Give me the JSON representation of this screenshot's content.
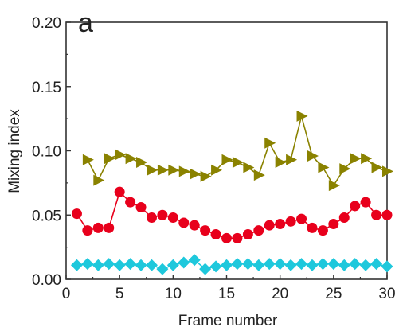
{
  "chart_data": {
    "type": "scatter",
    "panel_label": "a",
    "title": "",
    "xlabel": "Frame number",
    "ylabel": "Mixing index",
    "xlim": [
      0,
      30
    ],
    "ylim": [
      0,
      0.2
    ],
    "x_ticks": [
      0,
      5,
      10,
      15,
      20,
      25,
      30
    ],
    "x_tick_labels": [
      "0",
      "5",
      "10",
      "15",
      "20",
      "25",
      "30"
    ],
    "y_ticks": [
      0,
      0.05,
      0.1,
      0.15,
      0.2
    ],
    "y_tick_labels": [
      "0.00",
      "0.05",
      "0.10",
      "0.15",
      "0.20"
    ],
    "grid": false,
    "legend": "none",
    "series": [
      {
        "color": "#8a8200",
        "marker": "triangle-right",
        "line": true,
        "x": [
          2,
          3,
          4,
          5,
          6,
          7,
          8,
          9,
          10,
          11,
          12,
          13,
          14,
          15,
          16,
          17,
          18,
          19,
          20,
          21,
          22,
          23,
          24,
          25,
          26,
          27,
          28,
          29,
          30
        ],
        "y": [
          0.093,
          0.077,
          0.094,
          0.097,
          0.094,
          0.091,
          0.085,
          0.085,
          0.085,
          0.084,
          0.082,
          0.08,
          0.085,
          0.093,
          0.091,
          0.087,
          0.081,
          0.106,
          0.091,
          0.093,
          0.127,
          0.096,
          0.087,
          0.073,
          0.086,
          0.094,
          0.094,
          0.087,
          0.084
        ]
      },
      {
        "color": "#e8001c",
        "marker": "circle",
        "line": true,
        "x": [
          1,
          2,
          3,
          4,
          5,
          6,
          7,
          8,
          9,
          10,
          11,
          12,
          13,
          14,
          15,
          16,
          17,
          18,
          19,
          20,
          21,
          22,
          23,
          24,
          25,
          26,
          27,
          28,
          29,
          30
        ],
        "y": [
          0.051,
          0.038,
          0.04,
          0.04,
          0.068,
          0.06,
          0.056,
          0.048,
          0.05,
          0.048,
          0.044,
          0.042,
          0.038,
          0.035,
          0.032,
          0.032,
          0.035,
          0.038,
          0.042,
          0.043,
          0.045,
          0.047,
          0.04,
          0.038,
          0.043,
          0.048,
          0.057,
          0.06,
          0.05,
          0.05
        ]
      },
      {
        "color": "#1ec8dc",
        "marker": "diamond",
        "line": true,
        "x": [
          1,
          2,
          3,
          4,
          5,
          6,
          7,
          8,
          9,
          10,
          11,
          12,
          13,
          14,
          15,
          16,
          17,
          18,
          19,
          20,
          21,
          22,
          23,
          24,
          25,
          26,
          27,
          28,
          29,
          30
        ],
        "y": [
          0.011,
          0.012,
          0.011,
          0.012,
          0.011,
          0.012,
          0.011,
          0.011,
          0.008,
          0.011,
          0.013,
          0.015,
          0.008,
          0.01,
          0.011,
          0.012,
          0.012,
          0.011,
          0.012,
          0.012,
          0.011,
          0.012,
          0.011,
          0.012,
          0.012,
          0.011,
          0.012,
          0.011,
          0.012,
          0.01
        ]
      }
    ]
  }
}
